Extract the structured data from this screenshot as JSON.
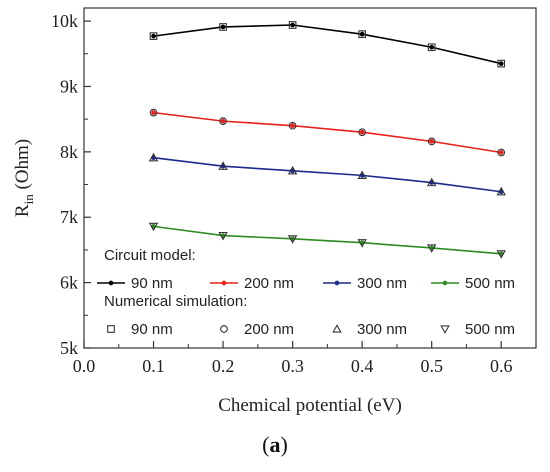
{
  "chart_data": {
    "type": "line",
    "title": "",
    "xlabel": "Chemical potential (eV)",
    "ylabel_main": "R",
    "ylabel_sub": "in",
    "ylabel_unit": " (Ohm)",
    "xlim": [
      0.0,
      0.65
    ],
    "ylim": [
      5000,
      10200
    ],
    "x_ticks": [
      0.0,
      0.1,
      0.2,
      0.3,
      0.4,
      0.5,
      0.6
    ],
    "x_tick_labels": [
      "0.0",
      "0.1",
      "0.2",
      "0.3",
      "0.4",
      "0.5",
      "0.6"
    ],
    "y_ticks": [
      5000,
      6000,
      7000,
      8000,
      9000,
      10000
    ],
    "y_tick_labels": [
      "5k",
      "6k",
      "7k",
      "8k",
      "9k",
      "10k"
    ],
    "grid": false,
    "legend_placement": "bottom",
    "x": [
      0.1,
      0.2,
      0.3,
      0.4,
      0.5,
      0.6
    ],
    "circuit_model_title": "Circuit model:",
    "numerical_title": "Numerical simulation:",
    "series": [
      {
        "name": "90 nm",
        "color": "#000000",
        "marker": "square",
        "values": [
          9770,
          9910,
          9940,
          9800,
          9600,
          9350
        ]
      },
      {
        "name": "200 nm",
        "color": "#e8201a",
        "marker": "circle",
        "values": [
          8600,
          8470,
          8400,
          8300,
          8160,
          7990
        ]
      },
      {
        "name": "300 nm",
        "color": "#1c2a8c",
        "marker": "triangle-up",
        "values": [
          7910,
          7780,
          7710,
          7640,
          7530,
          7390
        ]
      },
      {
        "name": "500 nm",
        "color": "#2e8b22",
        "marker": "triangle-down",
        "values": [
          6860,
          6720,
          6670,
          6610,
          6530,
          6440
        ]
      }
    ]
  },
  "caption": {
    "open": "(",
    "letter": "a",
    "close": ")"
  }
}
